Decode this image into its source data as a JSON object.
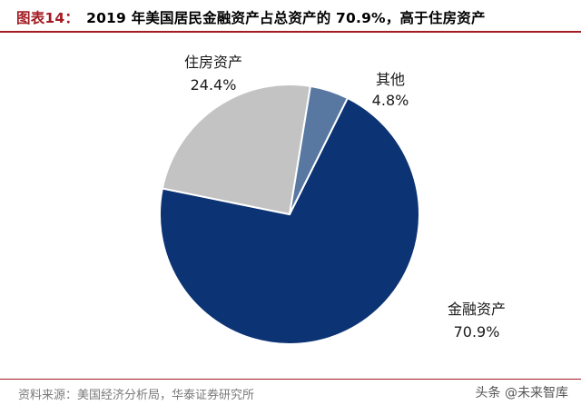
{
  "header": {
    "figure_label": "图表14：",
    "title": "2019 年美国居民金融资产占总资产的 70.9%，高于住房资产"
  },
  "chart_data": {
    "type": "pie",
    "title": "2019 年美国居民金融资产占总资产的 70.9%，高于住房资产",
    "slices": [
      {
        "name": "金融资产",
        "value": 70.9,
        "value_label": "70.9%",
        "color": "#0c3373"
      },
      {
        "name": "住房资产",
        "value": 24.4,
        "value_label": "24.4%",
        "color": "#c3c3c3"
      },
      {
        "name": "其他",
        "value": 4.8,
        "value_label": "4.8%",
        "color": "#5878a2"
      }
    ]
  },
  "footer": {
    "source": "资料来源：美国经济分析局，华泰证券研究所",
    "watermark": "头条 @未来智库"
  }
}
